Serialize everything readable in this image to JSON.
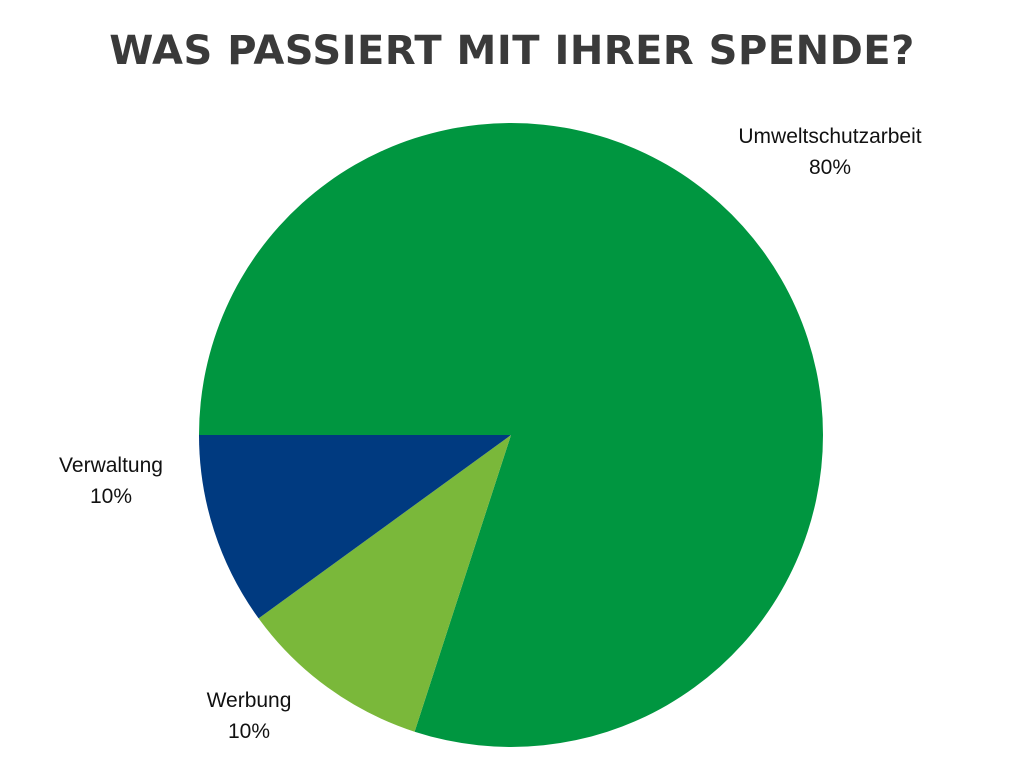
{
  "title": "WAS PASSIERT MIT IHRER SPENDE?",
  "chart_data": {
    "type": "pie",
    "title": "WAS PASSIERT MIT IHRER SPENDE?",
    "slices": [
      {
        "label": "Umweltschutzarbeit",
        "value": 80,
        "value_label": "80%",
        "color": "#009640"
      },
      {
        "label": "Werbung",
        "value": 10,
        "value_label": "10%",
        "color": "#7ab83a"
      },
      {
        "label": "Verwaltung",
        "value": 10,
        "value_label": "10%",
        "color": "#003a80"
      }
    ],
    "legend": "none"
  }
}
